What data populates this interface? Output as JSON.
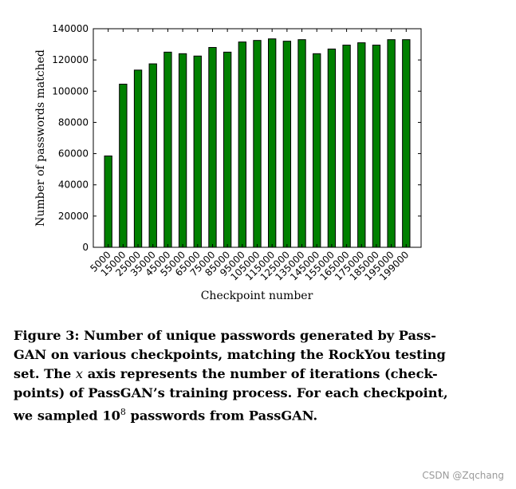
{
  "chart_data": {
    "type": "bar",
    "title": "",
    "xlabel": "Checkpoint number",
    "ylabel": "Number of passwords matched",
    "ylim": [
      0,
      140000
    ],
    "yticks": [
      0,
      20000,
      40000,
      60000,
      80000,
      100000,
      120000,
      140000
    ],
    "categories": [
      "5000",
      "15000",
      "25000",
      "35000",
      "45000",
      "55000",
      "65000",
      "75000",
      "85000",
      "95000",
      "105000",
      "115000",
      "125000",
      "135000",
      "145000",
      "155000",
      "165000",
      "175000",
      "185000",
      "195000",
      "199000"
    ],
    "values": [
      58500,
      104500,
      113500,
      117500,
      125000,
      124000,
      122500,
      128000,
      125000,
      131500,
      132500,
      133500,
      132000,
      133000,
      124000,
      127000,
      129500,
      131000,
      129500,
      133000,
      133000
    ],
    "bar_color": "#008000",
    "grid": false,
    "legend": "none"
  },
  "caption": {
    "label": "Figure 3:",
    "seg1": " Number of unique passwords generated by Pass-GAN on various checkpoints, matching the RockYou testing set. The ",
    "axis_var": "x",
    "seg2": " axis represents the number of iterations (check-points) of PassGAN’s training process. For each checkpoint, we sampled ",
    "base": "10",
    "exp": "8",
    "seg3": " passwords from PassGAN."
  },
  "watermark": "CSDN @Zqchang"
}
